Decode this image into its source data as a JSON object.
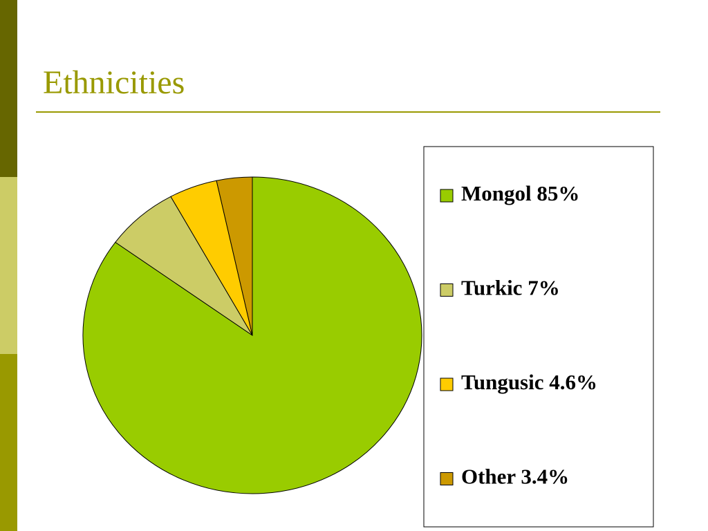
{
  "chart_data": {
    "type": "pie",
    "title": "Ethnicities",
    "categories": [
      "Mongol 85%",
      "Turkic 7%",
      "Tungusic 4.6%",
      "Other 3.4%"
    ],
    "values": [
      85,
      7,
      4.6,
      3.4
    ],
    "colors": [
      "#99cc00",
      "#cccc66",
      "#ffcc00",
      "#cc9900"
    ],
    "legend": "right"
  }
}
